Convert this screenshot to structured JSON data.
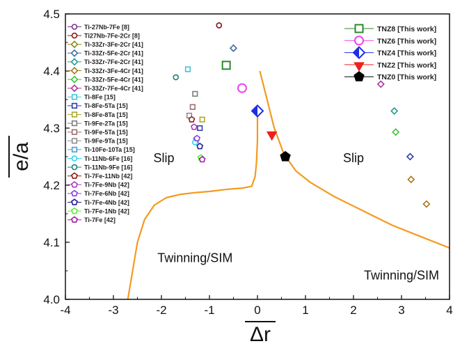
{
  "chart_data": {
    "type": "scatter",
    "xlabel": "Δr",
    "ylabel": "e/a",
    "xlim": [
      -4,
      4
    ],
    "ylim": [
      4.0,
      4.5
    ],
    "x_ticks": [
      "-4",
      "-3",
      "-2",
      "-1",
      "0",
      "1",
      "2",
      "3",
      "4"
    ],
    "y_ticks": [
      "4.0",
      "4.1",
      "4.2",
      "4.3",
      "4.4",
      "4.5"
    ],
    "regions": [
      {
        "label": "Slip",
        "x": -1.95,
        "y": 4.24
      },
      {
        "label": "Slip",
        "x": 2.0,
        "y": 4.24
      },
      {
        "label": "Twinning/SIM",
        "x": -1.3,
        "y": 4.065
      },
      {
        "label": "Twinning/SIM",
        "x": 3.0,
        "y": 4.035
      }
    ],
    "boundary_color": "#F39A1E",
    "boundaries": [
      {
        "name": "left",
        "points": [
          [
            -2.7,
            4.0
          ],
          [
            -2.6,
            4.05
          ],
          [
            -2.5,
            4.1
          ],
          [
            -2.35,
            4.14
          ],
          [
            -2.15,
            4.165
          ],
          [
            -1.9,
            4.178
          ],
          [
            -1.6,
            4.184
          ],
          [
            -1.3,
            4.187
          ],
          [
            -1.0,
            4.189
          ],
          [
            -0.6,
            4.193
          ],
          [
            -0.3,
            4.195
          ],
          [
            -0.12,
            4.198
          ],
          [
            -0.05,
            4.215
          ],
          [
            -0.02,
            4.24
          ],
          [
            0.0,
            4.28
          ],
          [
            0.0,
            4.34
          ]
        ]
      },
      {
        "name": "right",
        "points": [
          [
            0.05,
            4.4
          ],
          [
            0.2,
            4.35
          ],
          [
            0.35,
            4.3
          ],
          [
            0.55,
            4.255
          ],
          [
            0.8,
            4.225
          ],
          [
            1.1,
            4.205
          ],
          [
            1.6,
            4.18
          ],
          [
            2.2,
            4.155
          ],
          [
            2.8,
            4.13
          ],
          [
            3.4,
            4.11
          ],
          [
            4.0,
            4.09
          ]
        ]
      }
    ],
    "series": [
      {
        "name": "Ti-27Nb-7Fe [8]",
        "color": "#7B2E8E",
        "marker": "circle",
        "points": [
          [
            -0.8,
            4.48
          ]
        ]
      },
      {
        "name": "Ti27Nb-7Fe-2Cr [8]",
        "color": "#8B1A1A",
        "marker": "circle",
        "points": [
          [
            -0.8,
            4.48
          ]
        ]
      },
      {
        "name": "Ti-33Zr-3Fe-2Cr [41]",
        "color": "#8A8A1E",
        "marker": "diamond",
        "points": [
          [
            -0.5,
            4.44
          ]
        ]
      },
      {
        "name": "Ti-33Zr-5Fe-2Cr [41]",
        "color": "#3E6FA8",
        "marker": "diamond",
        "points": [
          [
            -0.5,
            4.44
          ]
        ]
      },
      {
        "name": "Ti-33Zr-7Fe-2Cr [41]",
        "color": "#1F9C8E",
        "marker": "diamond",
        "points": [
          [
            2.85,
            4.33
          ]
        ]
      },
      {
        "name": "Ti-33Zr-3Fe-4Cr [41]",
        "color": "#A8771E",
        "marker": "diamond",
        "points": [
          [
            3.2,
            4.21
          ]
        ]
      },
      {
        "name": "Ti-33Zr-5Fe-4Cr [41]",
        "color": "#3CC43C",
        "marker": "diamond",
        "points": [
          [
            2.88,
            4.293
          ]
        ]
      },
      {
        "name": "Ti-33Zr-7Fe-4Cr [41]",
        "color": "#B0309E",
        "marker": "diamond",
        "points": [
          [
            2.57,
            4.377
          ]
        ]
      },
      {
        "name": "Ti-8Fe [15]",
        "color": "#3FC6D6",
        "marker": "square",
        "points": [
          [
            -1.45,
            4.403
          ]
        ]
      },
      {
        "name": "Ti-8Fe-5Ta [15]",
        "color": "#2E3EA8",
        "marker": "square",
        "points": [
          [
            -1.2,
            4.3
          ]
        ]
      },
      {
        "name": "Ti-8Fe-8Ta [15]",
        "color": "#A8A82E",
        "marker": "square",
        "points": [
          [
            -1.15,
            4.315
          ]
        ]
      },
      {
        "name": "Ti-9Fe-2Ta [15]",
        "color": "#7E7E7E",
        "marker": "square",
        "points": [
          [
            -1.3,
            4.36
          ]
        ]
      },
      {
        "name": "Ti-9Fe-5Ta [15]",
        "color": "#9E6E6E",
        "marker": "square",
        "points": [
          [
            -1.35,
            4.337
          ]
        ]
      },
      {
        "name": "Ti-9Fe-9Ta [15]",
        "color": "#8E8E8E",
        "marker": "square",
        "points": [
          [
            -1.42,
            4.322
          ]
        ]
      },
      {
        "name": "Ti-10Fe-10Ta [15]",
        "color": "#4E9ECE",
        "marker": "square",
        "points": [
          [
            -1.28,
            4.278
          ]
        ]
      },
      {
        "name": "Ti-11Nb-6Fe [16]",
        "color": "#26D6F0",
        "marker": "circle",
        "points": [
          [
            -1.3,
            4.275
          ]
        ]
      },
      {
        "name": "Ti-11Nb-9Fe [16]",
        "color": "#1E7E7E",
        "marker": "circle",
        "points": [
          [
            -1.7,
            4.389
          ]
        ]
      },
      {
        "name": "Ti-7Fe-11Nb [42]",
        "color": "#8B1A1A",
        "marker": "pentagon",
        "points": [
          [
            -1.37,
            4.315
          ]
        ]
      },
      {
        "name": "Ti-7Fe-9Nb [42]",
        "color": "#A83EBE",
        "marker": "pentagon",
        "points": [
          [
            -1.32,
            4.302
          ]
        ]
      },
      {
        "name": "Ti-7Fe-6Nb [42]",
        "color": "#8A3EE6",
        "marker": "pentagon",
        "points": [
          [
            -1.26,
            4.282
          ]
        ]
      },
      {
        "name": "Ti-7Fe-4Nb [42]",
        "color": "#1E1E8E",
        "marker": "pentagon",
        "points": [
          [
            -1.2,
            4.268
          ]
        ]
      },
      {
        "name": "Ti-7Fe-1Nb [42]",
        "color": "#5EEE2E",
        "marker": "pentagon",
        "points": [
          [
            -1.18,
            4.248
          ]
        ]
      },
      {
        "name": "Ti-7Fe [42]",
        "color": "#A01E9E",
        "marker": "pentagon",
        "points": [
          [
            -1.15,
            4.245
          ]
        ]
      },
      {
        "name": "TNZ8 [This work]",
        "color": "#2A8A2A",
        "marker": "square-open-lg",
        "points": [
          [
            -0.65,
            4.41
          ]
        ]
      },
      {
        "name": "TNZ6 [This work]",
        "color": "#F040F0",
        "marker": "circle-open-lg",
        "points": [
          [
            -0.32,
            4.37
          ]
        ]
      },
      {
        "name": "TNZ4 [This work]",
        "color": "#1E2EE6",
        "marker": "diamond-half",
        "points": [
          [
            0.0,
            4.33
          ]
        ]
      },
      {
        "name": "TNZ2 [This work]",
        "color": "#F01E1E",
        "marker": "triangle-down",
        "points": [
          [
            0.3,
            4.29
          ]
        ]
      },
      {
        "name": "TNZ0 [This work]",
        "color": "#000000",
        "marker": "pentagon-filled",
        "points": [
          [
            0.58,
            4.25
          ]
        ]
      }
    ],
    "extra_points": [
      {
        "color": "#2E3EA8",
        "marker": "diamond",
        "x": 3.18,
        "y": 4.25
      },
      {
        "color": "#A8771E",
        "marker": "diamond",
        "x": 3.52,
        "y": 4.167
      }
    ]
  }
}
